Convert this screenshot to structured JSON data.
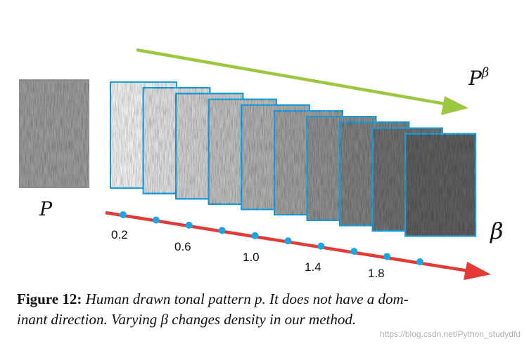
{
  "figure": {
    "input_label": "P",
    "output_label_base": "P",
    "output_label_sup": "β",
    "axis_label": "β",
    "ticks": [
      "0.2",
      "0.6",
      "1.0",
      "1.4",
      "1.8"
    ],
    "num_patches": 10,
    "patch_border_color": "#1aa6e4",
    "arrow_top_color": "#9cc73f",
    "arrow_bottom_color": "#e53935",
    "dot_color": "#1aa6e4"
  },
  "caption": {
    "label": "Figure 12:",
    "text_line1": "Human drawn tonal pattern p. It does not have a dom-",
    "text_line2": "inant direction. Varying β changes density in our method."
  },
  "watermark": "https://blog.csdn.net/Python_studydfd"
}
